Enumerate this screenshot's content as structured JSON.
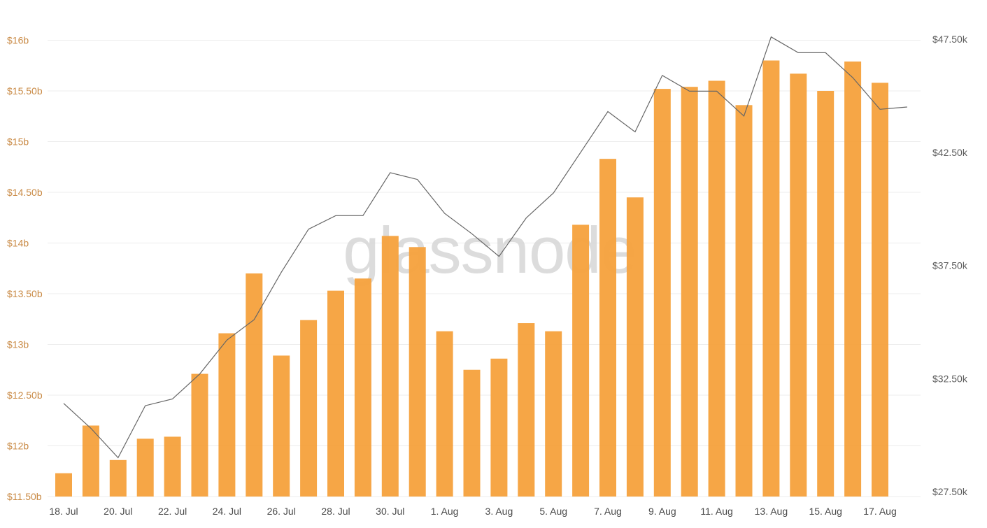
{
  "watermark": "glassnode",
  "colors": {
    "bar": "#f6a13c",
    "line": "#666666",
    "left_axis_text": "#c98a45",
    "right_axis_text": "#5c5c5c",
    "grid": "#ececec",
    "watermark": "#d6d6d6"
  },
  "chart_data": {
    "type": "bar",
    "x_ticks": [
      "18. Jul",
      "20. Jul",
      "22. Jul",
      "24. Jul",
      "26. Jul",
      "28. Jul",
      "30. Jul",
      "1. Aug",
      "3. Aug",
      "5. Aug",
      "7. Aug",
      "9. Aug",
      "11. Aug",
      "13. Aug",
      "15. Aug",
      "17. Aug"
    ],
    "left_axis": {
      "ticks": [
        "$11.50b",
        "$12b",
        "$12.50b",
        "$13b",
        "$13.50b",
        "$14b",
        "$14.50b",
        "$15b",
        "$15.50b",
        "$16b"
      ],
      "tick_values": [
        11.5,
        12,
        12.5,
        13,
        13.5,
        14,
        14.5,
        15,
        15.5,
        16
      ],
      "ylim": [
        11.5,
        16.0
      ]
    },
    "right_axis": {
      "ticks": [
        "$27.50k",
        "$32.50k",
        "$37.50k",
        "$42.50k",
        "$47.50k"
      ],
      "tick_values": [
        27.5,
        32.5,
        37.5,
        42.5,
        47.5
      ],
      "ylim": [
        27.5,
        47.5
      ]
    },
    "series": [
      {
        "type": "bar",
        "axis": "left",
        "values": [
          11.73,
          12.2,
          11.86,
          12.07,
          12.09,
          12.71,
          13.11,
          13.7,
          12.89,
          13.24,
          13.53,
          13.65,
          14.07,
          13.96,
          13.13,
          12.75,
          12.86,
          13.21,
          13.13,
          14.18,
          14.83,
          14.45,
          15.52,
          15.54,
          15.6,
          15.36,
          15.8,
          15.67,
          15.5,
          15.79,
          15.58
        ],
        "dates": [
          "18. Jul",
          "19. Jul",
          "20. Jul",
          "21. Jul",
          "22. Jul",
          "23. Jul",
          "24. Jul",
          "25. Jul",
          "26. Jul",
          "27. Jul",
          "28. Jul",
          "29. Jul",
          "30. Jul",
          "31. Jul",
          "1. Aug",
          "2. Aug",
          "3. Aug",
          "4. Aug",
          "5. Aug",
          "6. Aug",
          "7. Aug",
          "8. Aug",
          "9. Aug",
          "10. Aug",
          "11. Aug",
          "12. Aug",
          "13. Aug",
          "14. Aug",
          "15. Aug",
          "16. Aug",
          "17. Aug"
        ]
      },
      {
        "type": "line",
        "axis": "right",
        "values": [
          31.4,
          30.3,
          29.0,
          31.3,
          31.6,
          32.7,
          34.2,
          35.1,
          37.2,
          39.1,
          39.7,
          39.7,
          41.6,
          41.3,
          39.8,
          38.9,
          37.9,
          39.6,
          40.7,
          42.5,
          44.3,
          43.4,
          45.9,
          45.2,
          45.2,
          44.1,
          47.6,
          46.9,
          46.9,
          45.8,
          44.4,
          44.5
        ],
        "dates": [
          "18. Jul",
          "19. Jul",
          "20. Jul",
          "21. Jul",
          "22. Jul",
          "23. Jul",
          "24. Jul",
          "25. Jul",
          "26. Jul",
          "27. Jul",
          "28. Jul",
          "29. Jul",
          "30. Jul",
          "31. Jul",
          "1. Aug",
          "2. Aug",
          "3. Aug",
          "4. Aug",
          "5. Aug",
          "6. Aug",
          "7. Aug",
          "8. Aug",
          "9. Aug",
          "10. Aug",
          "11. Aug",
          "12. Aug",
          "13. Aug",
          "14. Aug",
          "15. Aug",
          "16. Aug",
          "17. Aug",
          "18. Aug"
        ]
      }
    ],
    "grid": true,
    "legend": "none"
  }
}
